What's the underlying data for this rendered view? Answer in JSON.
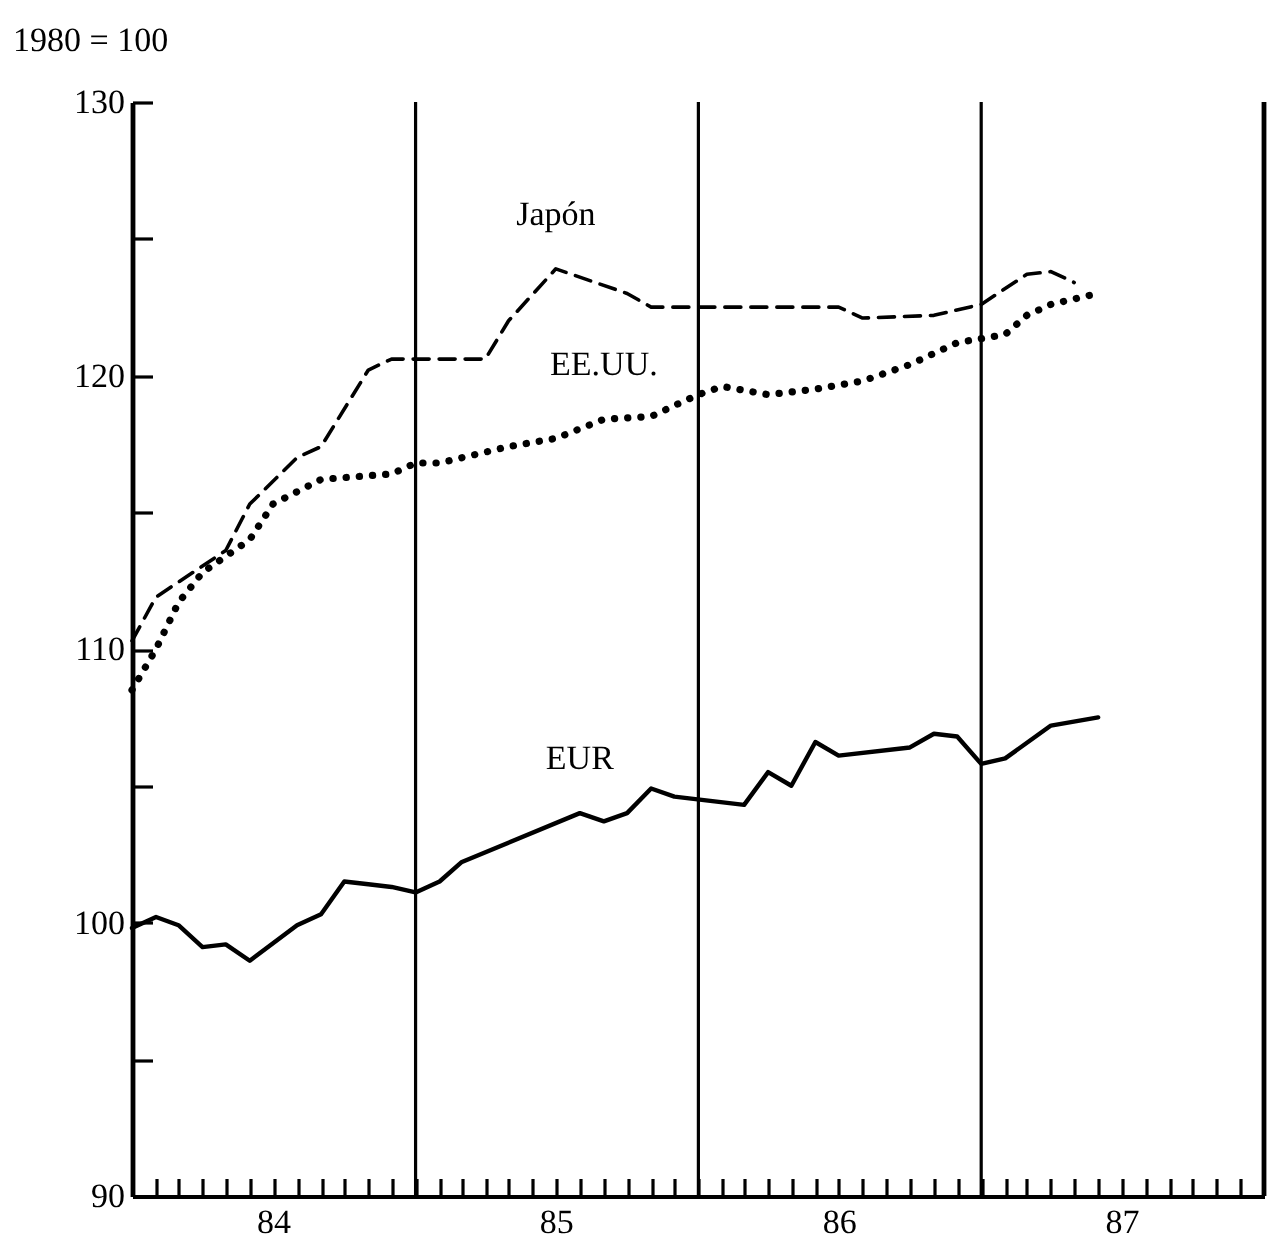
{
  "chart_data": {
    "type": "line",
    "ylabel": "1980 = 100",
    "xlim": [
      "1984-01",
      "1988-01"
    ],
    "xticks": [
      {
        "value": "1984-02",
        "label": null
      },
      {
        "value": "1984-03",
        "label": null
      },
      {
        "value": "1984-04",
        "label": null
      },
      {
        "value": "1984-05",
        "label": null
      },
      {
        "value": "1984-06",
        "label": null
      },
      {
        "value": "1984-07",
        "label": "84"
      },
      {
        "value": "1984-08",
        "label": null
      },
      {
        "value": "1984-09",
        "label": null
      },
      {
        "value": "1984-10",
        "label": null
      },
      {
        "value": "1984-11",
        "label": null
      },
      {
        "value": "1984-12",
        "label": null
      },
      {
        "value": "1985-01",
        "label": null
      },
      {
        "value": "1985-02",
        "label": null
      },
      {
        "value": "1985-03",
        "label": null
      },
      {
        "value": "1985-04",
        "label": null
      },
      {
        "value": "1985-05",
        "label": null
      },
      {
        "value": "1985-06",
        "label": null
      },
      {
        "value": "1985-07",
        "label": "85"
      },
      {
        "value": "1985-08",
        "label": null
      },
      {
        "value": "1985-09",
        "label": null
      },
      {
        "value": "1985-10",
        "label": null
      },
      {
        "value": "1985-11",
        "label": null
      },
      {
        "value": "1985-12",
        "label": null
      },
      {
        "value": "1986-01",
        "label": null
      },
      {
        "value": "1986-02",
        "label": null
      },
      {
        "value": "1986-03",
        "label": null
      },
      {
        "value": "1986-04",
        "label": null
      },
      {
        "value": "1986-05",
        "label": null
      },
      {
        "value": "1986-06",
        "label": null
      },
      {
        "value": "1986-07",
        "label": "86"
      },
      {
        "value": "1986-08",
        "label": null
      },
      {
        "value": "1986-09",
        "label": null
      },
      {
        "value": "1986-10",
        "label": null
      },
      {
        "value": "1986-11",
        "label": null
      },
      {
        "value": "1986-12",
        "label": null
      },
      {
        "value": "1987-01",
        "label": null
      },
      {
        "value": "1987-02",
        "label": null
      },
      {
        "value": "1987-03",
        "label": null
      },
      {
        "value": "1987-04",
        "label": null
      },
      {
        "value": "1987-05",
        "label": null
      },
      {
        "value": "1987-06",
        "label": null
      },
      {
        "value": "1987-07",
        "label": "87"
      },
      {
        "value": "1987-08",
        "label": null
      },
      {
        "value": "1987-09",
        "label": null
      },
      {
        "value": "1987-10",
        "label": null
      },
      {
        "value": "1987-11",
        "label": null
      },
      {
        "value": "1987-12",
        "label": null
      }
    ],
    "ylim": [
      90,
      130
    ],
    "yticks": [
      90,
      {
        "value": 95,
        "label": null
      },
      100,
      {
        "value": 105,
        "label": null
      },
      110,
      {
        "value": 115,
        "label": null
      },
      120,
      {
        "value": 125,
        "label": null
      },
      130
    ],
    "grid": false,
    "legend": false,
    "marker": "none",
    "ref_lines": [
      {
        "axis": "x",
        "value": "1985-01"
      },
      {
        "axis": "x",
        "value": "1986-01"
      },
      {
        "axis": "x",
        "value": "1987-01"
      }
    ],
    "series": [
      {
        "name": "Japón",
        "color": "#000000",
        "line_style": "dashed",
        "x": [
          "1984-01",
          "1984-02",
          "1984-05",
          "1984-06",
          "1984-08",
          "1984-09",
          "1984-11",
          "1984-12",
          "1985-04",
          "1985-05",
          "1985-07",
          "1985-10",
          "1985-11",
          "1985-12",
          "1986-07",
          "1986-08",
          "1986-11",
          "1987-01",
          "1987-03",
          "1987-04",
          "1987-05"
        ],
        "values": [
          110.3,
          111.9,
          113.6,
          115.3,
          117.0,
          117.4,
          120.2,
          120.6,
          120.6,
          122.0,
          123.9,
          123.0,
          122.5,
          122.5,
          122.5,
          122.1,
          122.2,
          122.6,
          123.7,
          123.8,
          123.4
        ]
      },
      {
        "name": "EE.UU.",
        "color": "#000000",
        "line_style": "dotted",
        "x": [
          "1984-01",
          "1984-02",
          "1984-03",
          "1984-04",
          "1984-06",
          "1984-07",
          "1984-09",
          "1984-12",
          "1985-01",
          "1985-02",
          "1985-05",
          "1985-07",
          "1985-09",
          "1985-11",
          "1985-12",
          "1986-01",
          "1986-02",
          "1986-04",
          "1986-06",
          "1986-08",
          "1986-10",
          "1986-12",
          "1987-02",
          "1987-03",
          "1987-04",
          "1987-06"
        ],
        "values": [
          108.5,
          110.0,
          111.7,
          112.8,
          114.0,
          115.3,
          116.2,
          116.4,
          116.8,
          116.8,
          117.4,
          117.7,
          118.4,
          118.5,
          118.9,
          119.3,
          119.6,
          119.3,
          119.5,
          119.8,
          120.4,
          121.2,
          121.5,
          122.2,
          122.6,
          123.0
        ]
      },
      {
        "name": "EUR",
        "color": "#000000",
        "line_style": "solid",
        "x": [
          "1984-01",
          "1984-02",
          "1984-03",
          "1984-04",
          "1984-05",
          "1984-06",
          "1984-08",
          "1984-09",
          "1984-10",
          "1984-11",
          "1984-12",
          "1985-01",
          "1985-02",
          "1985-03",
          "1985-08",
          "1985-09",
          "1985-10",
          "1985-11",
          "1985-12",
          "1986-03",
          "1986-04",
          "1986-05",
          "1986-06",
          "1986-07",
          "1986-10",
          "1986-11",
          "1986-12",
          "1987-01",
          "1987-02",
          "1987-04",
          "1987-06"
        ],
        "values": [
          99.8,
          100.2,
          99.9,
          99.1,
          99.2,
          98.6,
          99.9,
          100.3,
          101.5,
          101.4,
          101.3,
          101.1,
          101.5,
          102.2,
          104.0,
          103.7,
          104.0,
          104.9,
          104.6,
          104.3,
          105.5,
          105.0,
          106.6,
          106.1,
          106.4,
          106.9,
          106.8,
          105.8,
          106.0,
          107.2,
          107.5
        ]
      }
    ]
  }
}
